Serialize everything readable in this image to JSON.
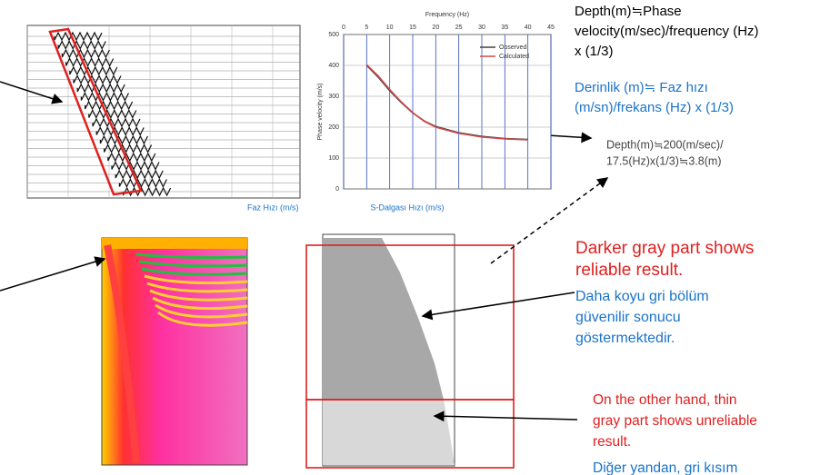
{
  "panel_axis_titles": {
    "phase_velocity_tr": "Faz Hızı (m/s)",
    "s_wave_velocity_tr": "S-Dalgası Hızı (m/s)"
  },
  "chart_data": {
    "type": "line",
    "title": "Frequency (Hz)",
    "y_label": "Phase velocity (m/s)",
    "x": [
      5,
      7.5,
      10,
      12.5,
      15,
      17.5,
      20,
      25,
      30,
      35,
      40
    ],
    "series": [
      {
        "name": "Observed",
        "color": "#444444",
        "values": [
          400,
          362,
          318,
          280,
          246,
          220,
          202,
          182,
          170,
          163,
          160
        ]
      },
      {
        "name": "Calculated",
        "color": "#d04848",
        "values": [
          402,
          366,
          322,
          282,
          247,
          219,
          200,
          180,
          168,
          162,
          159
        ]
      }
    ],
    "xlim": [
      0,
      45
    ],
    "xticks": [
      0,
      5,
      10,
      15,
      20,
      25,
      30,
      35,
      40,
      45
    ],
    "ylim": [
      0,
      500
    ],
    "yticks": [
      0,
      100,
      200,
      300,
      400,
      500
    ],
    "grid": true,
    "legend": "top-right"
  },
  "annotations": {
    "formula_en": [
      "Depth(m)≒Phase",
      "velocity(m/sec)/frequency (Hz)",
      "x (1/3)"
    ],
    "formula_tr": [
      "Derinlik (m)≒ Faz hızı",
      "(m/sn)/frekans (Hz) x (1/3)"
    ],
    "example": [
      "Depth(m)≒200(m/sec)/",
      "17.5(Hz)x(1/3)≒3.8(m)"
    ],
    "reliable_en": [
      "Darker gray  part shows",
      "reliable result."
    ],
    "reliable_tr": [
      "Daha koyu gri bölüm",
      "güvenilir sonucu",
      "göstermektedir."
    ],
    "unreliable_en": [
      "On the other hand, thin",
      "gray  part shows unreliable",
      "result."
    ],
    "unreliable_tr": [
      "Diğer yandan, gri kısım"
    ]
  }
}
